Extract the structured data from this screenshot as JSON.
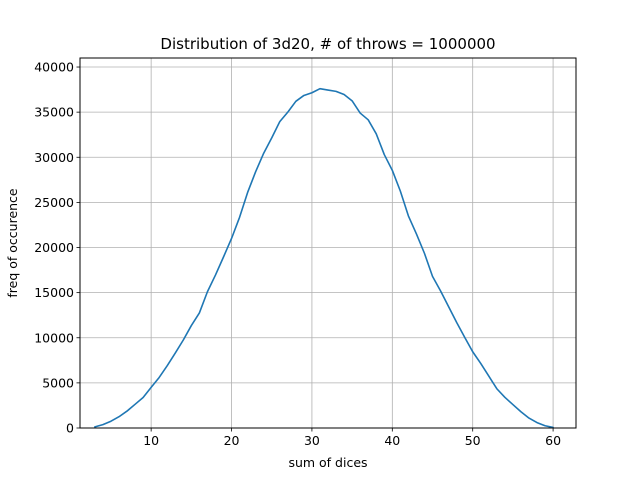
{
  "chart_data": {
    "type": "line",
    "title": "Distribution of 3d20, # of throws = 1000000",
    "xlabel": "sum of dices",
    "ylabel": "freq of occurence",
    "xlim": [
      1.15,
      62.85
    ],
    "ylim": [
      0,
      41000
    ],
    "xticks": [
      10,
      20,
      30,
      40,
      50,
      60
    ],
    "yticks": [
      0,
      5000,
      10000,
      15000,
      20000,
      25000,
      30000,
      35000,
      40000
    ],
    "grid": true,
    "color": "#1f77b4",
    "series": [
      {
        "x": [
          3,
          4,
          5,
          6,
          7,
          8,
          9,
          10,
          11,
          12,
          13,
          14,
          15,
          16,
          17,
          18,
          19,
          20,
          21,
          22,
          23,
          24,
          25,
          26,
          27,
          28,
          29,
          30,
          31,
          32,
          33,
          34,
          35,
          36,
          37,
          38,
          39,
          40,
          41,
          42,
          43,
          44,
          45,
          46,
          47,
          48,
          49,
          50,
          51,
          52,
          53,
          54,
          55,
          56,
          57,
          58,
          59,
          60
        ],
        "values": [
          125,
          375,
          750,
          1250,
          1875,
          2625,
          3375,
          4500,
          5600,
          6900,
          8300,
          9750,
          11350,
          12750,
          15100,
          16950,
          18950,
          21000,
          23350,
          26100,
          28400,
          30450,
          32150,
          33950,
          35000,
          36200,
          36850,
          37150,
          37600,
          37450,
          37300,
          36950,
          36250,
          34900,
          34150,
          32600,
          30300,
          28550,
          26250,
          23500,
          21500,
          19350,
          16800,
          15200,
          13450,
          11700,
          10050,
          8450,
          7150,
          5750,
          4350,
          3400,
          2600,
          1800,
          1100,
          600,
          250,
          60
        ]
      }
    ]
  }
}
